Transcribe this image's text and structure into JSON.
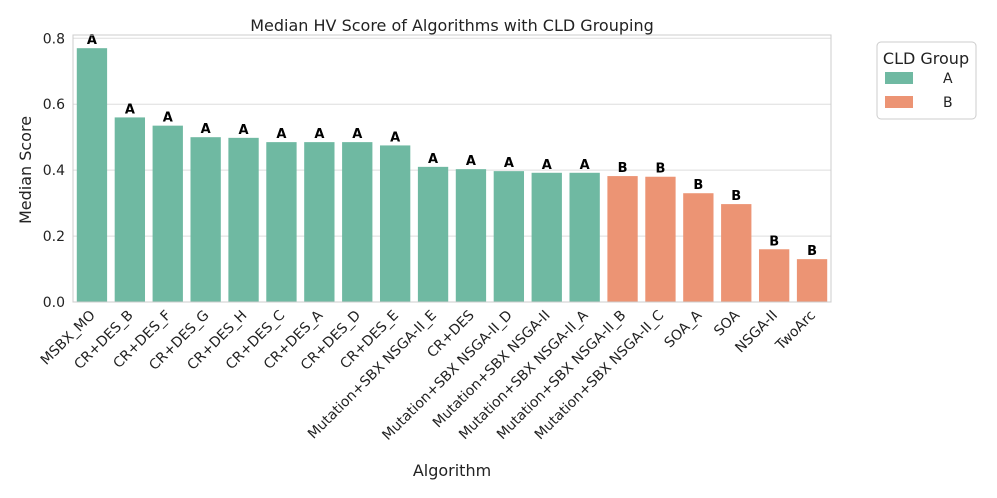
{
  "chart_data": {
    "type": "bar",
    "title": "Median HV Score of Algorithms with CLD Grouping",
    "xlabel": "Algorithm",
    "ylabel": "Median Score",
    "ylim": [
      0,
      0.81
    ],
    "yticks": [
      0.0,
      0.2,
      0.4,
      0.6,
      0.8
    ],
    "ytick_labels": [
      "0.0",
      "0.2",
      "0.4",
      "0.6",
      "0.8"
    ],
    "grid": true,
    "legend": {
      "title": "CLD Group",
      "placement": "top-right-outside",
      "entries": [
        {
          "label": "A",
          "color": "#6fb9a2"
        },
        {
          "label": "B",
          "color": "#ec9474"
        }
      ]
    },
    "categories": [
      "MSBX_MO",
      "CR+DES_B",
      "CR+DES_F",
      "CR+DES_G",
      "CR+DES_H",
      "CR+DES_C",
      "CR+DES_A",
      "CR+DES_D",
      "CR+DES_E",
      "Mutation+SBX NSGA-II_E",
      "CR+DES",
      "Mutation+SBX NSGA-II_D",
      "Mutation+SBX NSGA-II",
      "Mutation+SBX NSGA-II_A",
      "Mutation+SBX NSGA-II_B",
      "Mutation+SBX NSGA-II_C",
      "SOA_A",
      "SOA",
      "NSGA-II",
      "TwoArc"
    ],
    "values": [
      0.77,
      0.56,
      0.535,
      0.5,
      0.498,
      0.485,
      0.485,
      0.485,
      0.475,
      0.41,
      0.403,
      0.397,
      0.392,
      0.392,
      0.382,
      0.38,
      0.33,
      0.297,
      0.16,
      0.13
    ],
    "groups": [
      "A",
      "A",
      "A",
      "A",
      "A",
      "A",
      "A",
      "A",
      "A",
      "A",
      "A",
      "A",
      "A",
      "A",
      "B",
      "B",
      "B",
      "B",
      "B",
      "B"
    ]
  }
}
